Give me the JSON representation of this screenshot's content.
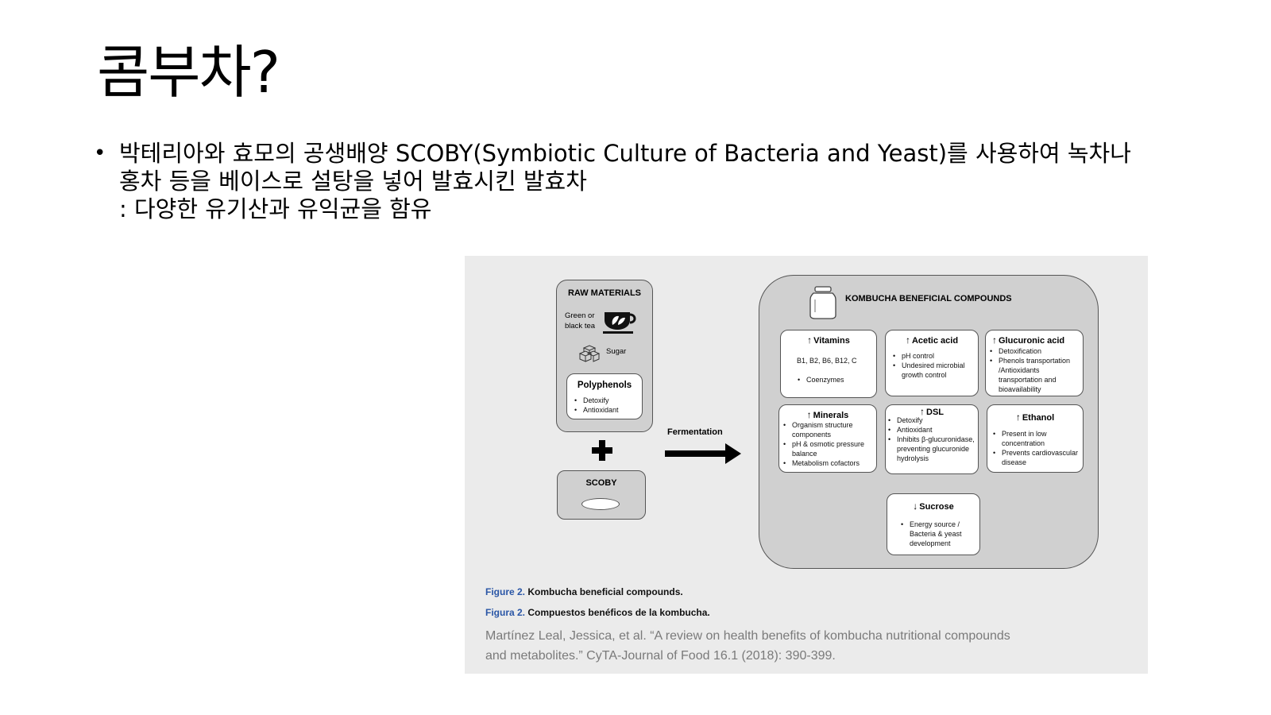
{
  "slide": {
    "title": "콤부차?",
    "bullet": {
      "lines": [
        "박테리아와 효모의 공생배양 SCOBY(Symbiotic Culture of Bacteria and Yeast)를 사용하여 녹차나",
        "홍차 등을 베이스로 설탕을 넣어 발효시킨 발효차",
        ": 다양한 유기산과 유익균을 함유"
      ]
    }
  },
  "figure": {
    "raw_materials": {
      "title": "RAW MATERIALS",
      "tea_line1": "Green or",
      "tea_line2": "black tea",
      "sugar": "Sugar",
      "polyphenols": {
        "title": "Polyphenols",
        "items": [
          "Detoxify",
          "Antioxidant"
        ]
      }
    },
    "scoby": {
      "title": "SCOBY"
    },
    "fermentation": "Fermentation",
    "compounds": {
      "title": "KOMBUCHA BENEFICIAL COMPOUNDS",
      "vitamins": {
        "title": "Vitamins",
        "b_line": "B1, B2, B6, B12, C",
        "items": [
          "Coenzymes"
        ]
      },
      "acetic_acid": {
        "title": "Acetic acid",
        "items": [
          "pH control",
          "Undesired microbial growth control"
        ]
      },
      "glucuronic_acid": {
        "title": "Glucuronic acid",
        "items": [
          "Detoxification",
          "Phenols transportation /Antioxidants transportation and bioavailability"
        ]
      },
      "minerals": {
        "title": "Minerals",
        "items": [
          "Organism structure components",
          "pH & osmotic pressure balance",
          "Metabolism cofactors"
        ]
      },
      "dsl": {
        "title": "DSL",
        "items": [
          "Detoxify",
          "Antioxidant",
          "Inhibits β-glucuronidase, preventing glucuronide hydrolysis"
        ]
      },
      "ethanol": {
        "title": "Ethanol",
        "items": [
          "Present in low concentration",
          "Prevents cardiovascular disease"
        ]
      },
      "sucrose": {
        "title": "Sucrose",
        "items": [
          "Energy source / Bacteria & yeast development"
        ]
      }
    },
    "caption_en": {
      "label": "Figure 2.",
      "text": "Kombucha beneficial compounds."
    },
    "caption_es": {
      "label": "Figura 2.",
      "text": "Compuestos benéficos de la kombucha."
    },
    "citation": {
      "line1": "Martínez Leal, Jessica, et al. “A review on health benefits of kombucha nutritional compounds",
      "line2": "and metabolites.” CyTA-Journal of Food 16.1 (2018): 390-399."
    }
  }
}
